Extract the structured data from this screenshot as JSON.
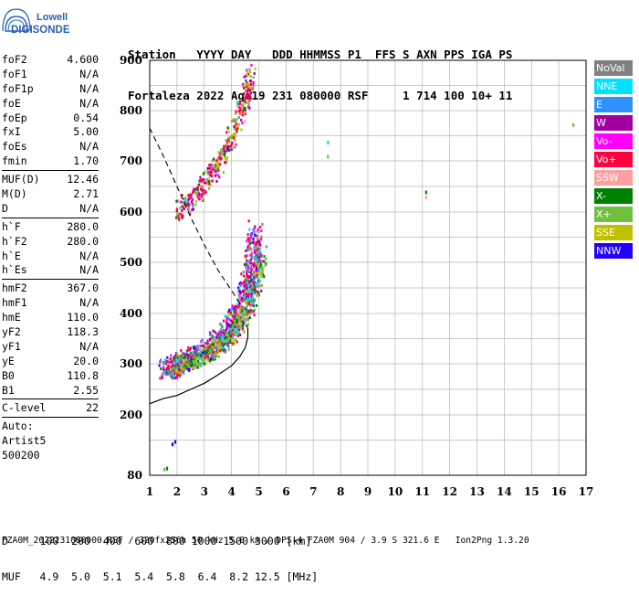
{
  "logo": {
    "line1": "Lowell",
    "line2": "DIGISONDE"
  },
  "header": {
    "labels_line": "Station   YYYY DAY   DDD HHMMSS P1  FFS S AXN PPS IGA PS",
    "values_line": "Fortaleza 2022 Ago19 231 080000 RSF     1 714 100 10+ 11"
  },
  "params": {
    "group1": [
      {
        "name": "foF2",
        "value": "4.600"
      },
      {
        "name": "foF1",
        "value": "N/A"
      },
      {
        "name": "foF1p",
        "value": "N/A"
      },
      {
        "name": "foE",
        "value": "N/A"
      },
      {
        "name": "foEp",
        "value": "0.54"
      },
      {
        "name": "fxI",
        "value": "5.00"
      },
      {
        "name": "foEs",
        "value": "N/A"
      },
      {
        "name": "fmin",
        "value": "1.70"
      }
    ],
    "group2": [
      {
        "name": "MUF(D)",
        "value": "12.46"
      },
      {
        "name": "M(D)",
        "value": "2.71"
      },
      {
        "name": "D",
        "value": "N/A"
      }
    ],
    "group3": [
      {
        "name": "h`F",
        "value": "280.0"
      },
      {
        "name": "h`F2",
        "value": "280.0"
      },
      {
        "name": "h`E",
        "value": "N/A"
      },
      {
        "name": "h`Es",
        "value": "N/A"
      }
    ],
    "group4": [
      {
        "name": "hmF2",
        "value": "367.0"
      },
      {
        "name": "hmF1",
        "value": "N/A"
      },
      {
        "name": "hmE",
        "value": "110.0"
      },
      {
        "name": "yF2",
        "value": "118.3"
      },
      {
        "name": "yF1",
        "value": "N/A"
      },
      {
        "name": "yE",
        "value": "20.0"
      },
      {
        "name": "B0",
        "value": "110.8"
      },
      {
        "name": "B1",
        "value": "2.55"
      }
    ],
    "clevel": {
      "name": "C-level",
      "value": "22"
    },
    "auto": {
      "line1": "Auto:",
      "line2": "Artist5",
      "line3": "500200"
    }
  },
  "legend": [
    {
      "label": "NoVal",
      "color": "#808080"
    },
    {
      "label": "NNE",
      "color": "#00e0ff"
    },
    {
      "label": "E",
      "color": "#3090ff"
    },
    {
      "label": "W",
      "color": "#a000a0"
    },
    {
      "label": "Vo-",
      "color": "#ff00ff"
    },
    {
      "label": "Vo+",
      "color": "#ff0040"
    },
    {
      "label": "SSW",
      "color": "#ffa0a0"
    },
    {
      "label": "X-",
      "color": "#008000"
    },
    {
      "label": "X+",
      "color": "#70c040"
    },
    {
      "label": "SSE",
      "color": "#c0c000"
    },
    {
      "label": "NNW",
      "color": "#2000ff"
    }
  ],
  "chart_data": {
    "type": "scatter",
    "x_ticks": [
      "1",
      "2",
      "3",
      "4",
      "5",
      "6",
      "7",
      "8",
      "9",
      "10",
      "11",
      "12",
      "13",
      "14",
      "15",
      "16",
      "17"
    ],
    "y_ticks": [
      "80",
      "200",
      "300",
      "400",
      "500",
      "600",
      "700",
      "800",
      "900"
    ],
    "xlim": [
      1,
      17
    ],
    "ylim": [
      80,
      900
    ],
    "grid": true,
    "legend_position": "right",
    "x_units": "MHz",
    "y_units": "km",
    "trace_o": [
      [
        1.55,
        282
      ],
      [
        1.8,
        288
      ],
      [
        2.1,
        296
      ],
      [
        2.5,
        305
      ],
      [
        2.9,
        318
      ],
      [
        3.3,
        332
      ],
      [
        3.7,
        352
      ],
      [
        4.0,
        372
      ],
      [
        4.3,
        400
      ],
      [
        4.5,
        432
      ],
      [
        4.65,
        470
      ],
      [
        4.75,
        510
      ],
      [
        4.85,
        560
      ]
    ],
    "trace_x": [
      [
        2.0,
        292
      ],
      [
        2.4,
        300
      ],
      [
        2.8,
        308
      ],
      [
        3.2,
        320
      ],
      [
        3.6,
        336
      ],
      [
        4.0,
        356
      ],
      [
        4.4,
        386
      ],
      [
        4.7,
        420
      ],
      [
        4.95,
        470
      ],
      [
        5.05,
        520
      ]
    ],
    "trace_2hop": [
      [
        2.0,
        595
      ],
      [
        2.5,
        620
      ],
      [
        3.0,
        650
      ],
      [
        3.5,
        690
      ],
      [
        3.9,
        730
      ],
      [
        4.2,
        770
      ],
      [
        4.5,
        820
      ],
      [
        4.7,
        870
      ]
    ],
    "isolated_points": [
      {
        "x": 1.8,
        "y": 145,
        "color": "#2000ff"
      },
      {
        "x": 1.9,
        "y": 150,
        "color": "#2000ff"
      },
      {
        "x": 1.5,
        "y": 95,
        "color": "#70c040"
      },
      {
        "x": 1.6,
        "y": 97,
        "color": "#008000"
      },
      {
        "x": 7.5,
        "y": 740,
        "color": "#00e0ff"
      },
      {
        "x": 7.5,
        "y": 712,
        "color": "#70c040"
      },
      {
        "x": 11.1,
        "y": 642,
        "color": "#008000"
      },
      {
        "x": 11.1,
        "y": 632,
        "color": "#ffa0a0"
      },
      {
        "x": 16.5,
        "y": 775,
        "color": "#70c040"
      }
    ],
    "profile_curve": [
      [
        1.0,
        222
      ],
      [
        1.5,
        232
      ],
      [
        2.0,
        238
      ],
      [
        2.5,
        250
      ],
      [
        3.0,
        262
      ],
      [
        3.5,
        278
      ],
      [
        4.0,
        296
      ],
      [
        4.3,
        314
      ],
      [
        4.5,
        332
      ],
      [
        4.6,
        352
      ],
      [
        4.6,
        372
      ]
    ],
    "muf_curve": [
      [
        1.0,
        765
      ],
      [
        1.5,
        710
      ],
      [
        2.0,
        650
      ],
      [
        2.5,
        590
      ],
      [
        3.0,
        535
      ],
      [
        3.5,
        485
      ],
      [
        4.0,
        445
      ],
      [
        4.3,
        420
      ]
    ]
  },
  "muf_table": {
    "d_line": "D     100  200  400  600  800 1000 1500 3000 [km]",
    "muf_line": "MUF   4.9  5.0  5.1  5.4  5.8  6.4  8.2 12.5 [MHz]"
  },
  "footer": "FZA0M_2022231080000.RSF / 320fx256h 50 kHz 5.0 km / DPS-4 FZA0M 904 / 3.9 S 321.6 E   Ion2Png 1.3.20"
}
